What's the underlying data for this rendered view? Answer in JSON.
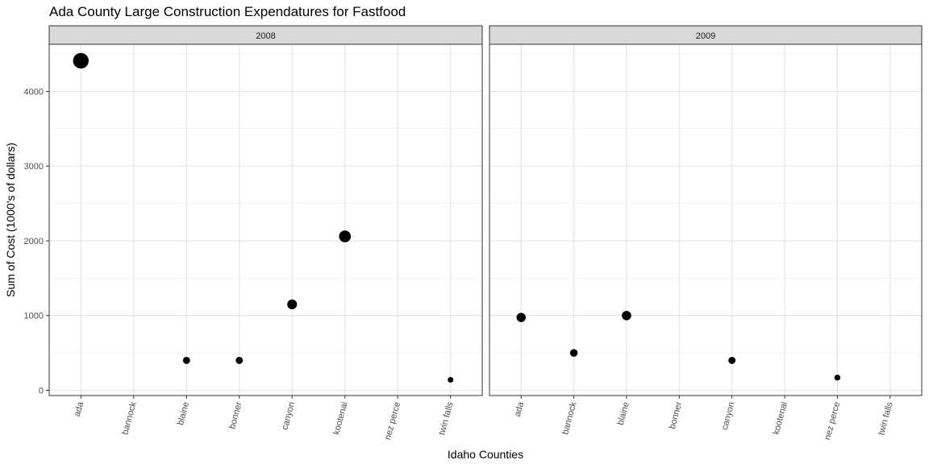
{
  "chart_data": {
    "type": "scatter",
    "title": "Ada County Large Construction Expendatures for Fastfood",
    "xlabel": "Idaho Counties",
    "ylabel": "Sum of Cost (1000's of dollars)",
    "categories": [
      "ada",
      "bannock",
      "blaine",
      "bonner",
      "canyon",
      "kootenai",
      "nez perce",
      "twin falls"
    ],
    "y_ticks": [
      0,
      1000,
      2000,
      3000,
      4000
    ],
    "ylim": [
      -70,
      4630
    ],
    "grid": true,
    "point_color": "#000000",
    "panels": [
      {
        "label": "2008",
        "points": [
          {
            "x": "ada",
            "y": 4410
          },
          {
            "x": "blaine",
            "y": 400
          },
          {
            "x": "bonner",
            "y": 400
          },
          {
            "x": "canyon",
            "y": 1150
          },
          {
            "x": "kootenai",
            "y": 2060
          },
          {
            "x": "twin falls",
            "y": 140
          }
        ]
      },
      {
        "label": "2009",
        "points": [
          {
            "x": "ada",
            "y": 975
          },
          {
            "x": "bannock",
            "y": 500
          },
          {
            "x": "blaine",
            "y": 1000
          },
          {
            "x": "canyon",
            "y": 400
          },
          {
            "x": "nez perce",
            "y": 170
          }
        ]
      }
    ]
  }
}
